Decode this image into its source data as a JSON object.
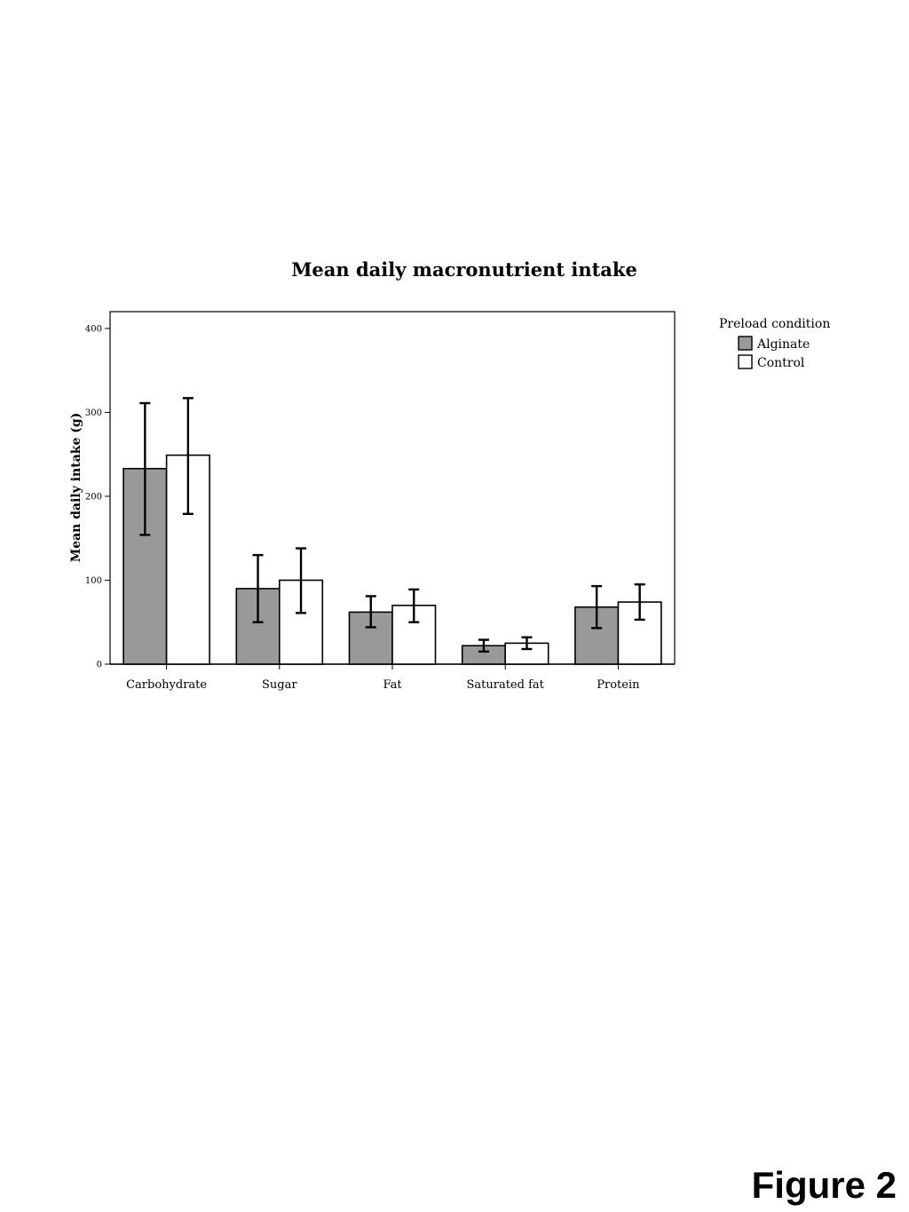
{
  "figure_caption": "Figure 2",
  "chart_data": {
    "type": "bar",
    "title": "Mean daily macronutrient intake",
    "xlabel": "",
    "ylabel": "Mean daily intake (g)",
    "ylim": [
      0,
      420
    ],
    "yticks": [
      "0",
      "100",
      "200",
      "300",
      "400"
    ],
    "ytick_values": [
      0,
      100,
      200,
      300,
      400
    ],
    "grid": false,
    "categories": [
      "Carbohydrate",
      "Sugar",
      "Fat",
      "Saturated fat",
      "Protein"
    ],
    "legend": {
      "title": "Preload condition",
      "placement": "right"
    },
    "series": [
      {
        "name": "Alginate",
        "color": "#999999",
        "values": [
          233,
          90,
          62,
          22,
          68
        ],
        "error_low": [
          154,
          50,
          44,
          15,
          43
        ],
        "error_high": [
          311,
          130,
          81,
          29,
          93
        ]
      },
      {
        "name": "Control",
        "color": "#ffffff",
        "values": [
          249,
          100,
          70,
          25,
          74
        ],
        "error_low": [
          179,
          61,
          50,
          18,
          53
        ],
        "error_high": [
          317,
          138,
          89,
          32,
          95
        ]
      }
    ]
  }
}
